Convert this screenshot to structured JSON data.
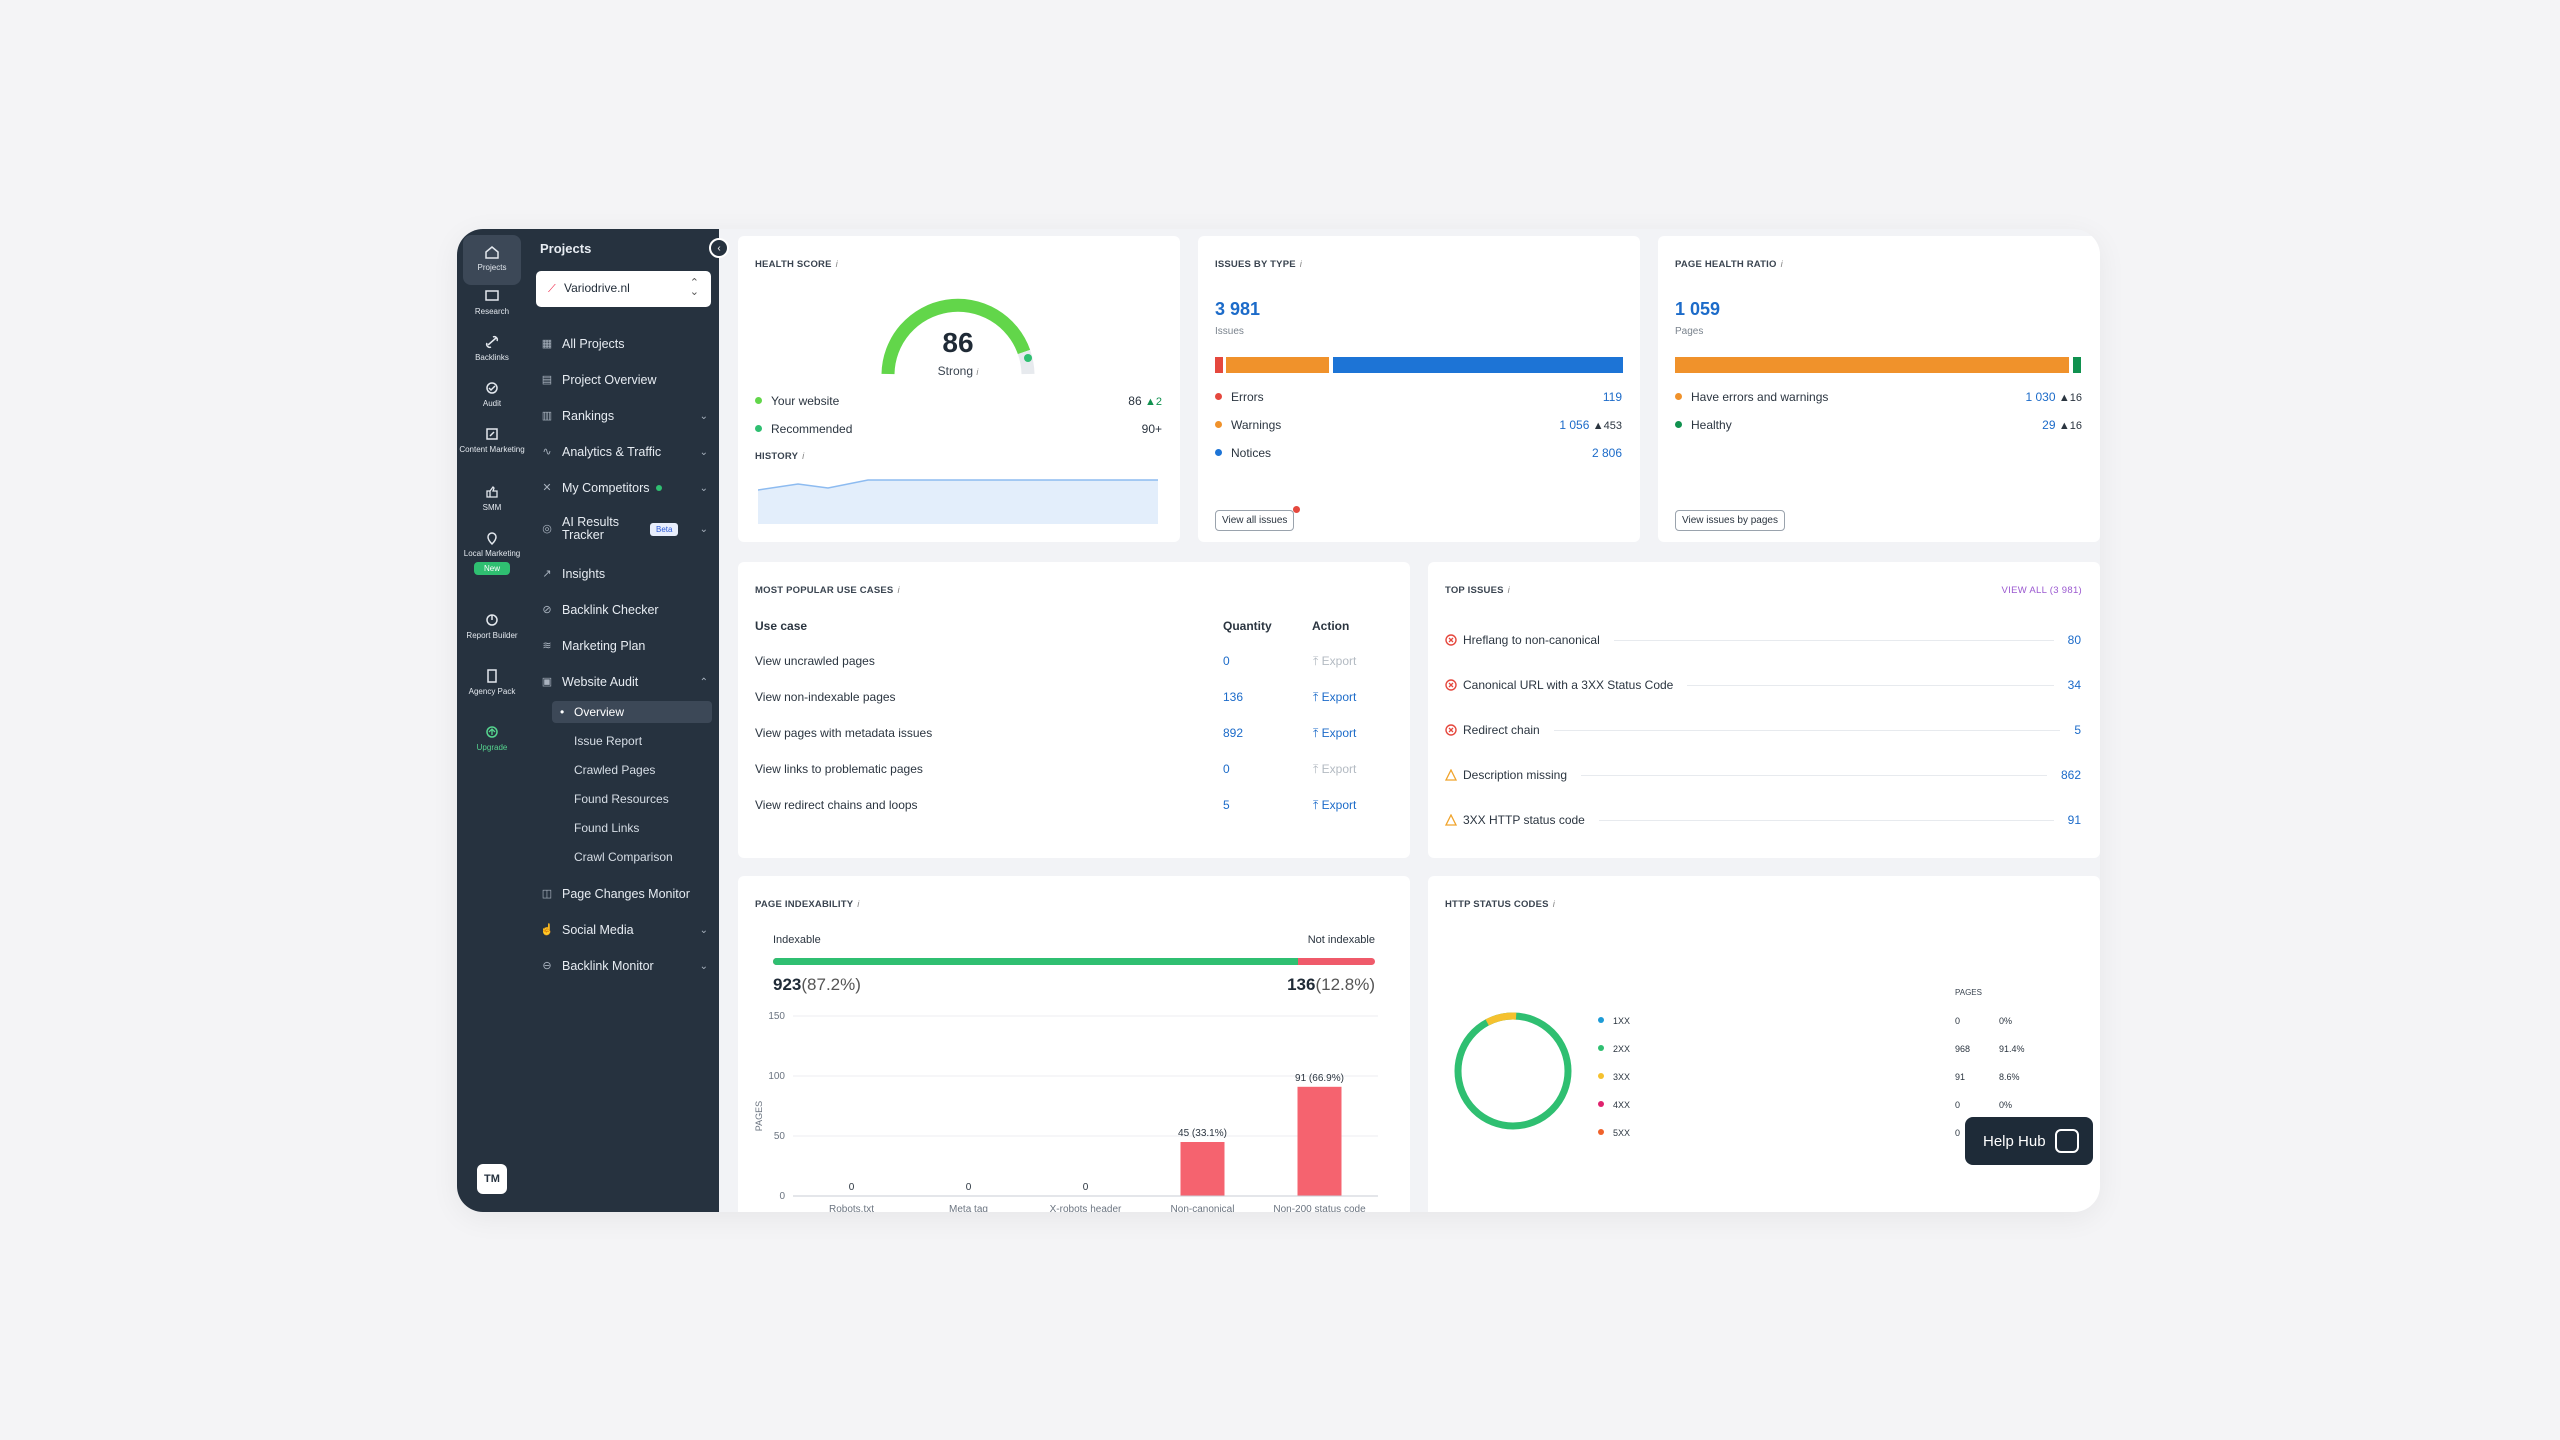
{
  "rail": [
    {
      "label": "Projects",
      "icon": "home-icon"
    },
    {
      "label": "Research",
      "icon": "research-icon"
    },
    {
      "label": "Backlinks",
      "icon": "link-icon"
    },
    {
      "label": "Audit",
      "icon": "audit-icon"
    },
    {
      "label": "Content Marketing",
      "icon": "content-icon"
    },
    {
      "label": "SMM",
      "icon": "like-icon"
    },
    {
      "label": "Local Marketing",
      "icon": "pin-icon",
      "badge": "New"
    },
    {
      "label": "Report Builder",
      "icon": "report-icon"
    },
    {
      "label": "Agency Pack",
      "icon": "agency-icon"
    },
    {
      "label": "Upgrade",
      "icon": "upgrade-icon"
    }
  ],
  "avatar": "TM",
  "nav": {
    "title": "Projects",
    "project": "Variodrive.nl",
    "items": [
      {
        "label": "All Projects"
      },
      {
        "label": "Project Overview"
      },
      {
        "label": "Rankings"
      },
      {
        "label": "Analytics & Traffic"
      },
      {
        "label": "My Competitors"
      },
      {
        "label": "AI Results Tracker",
        "badge": "Beta"
      },
      {
        "label": "Insights"
      },
      {
        "label": "Backlink Checker"
      },
      {
        "label": "Marketing Plan"
      },
      {
        "label": "Website Audit"
      }
    ],
    "sub": [
      "Overview",
      "Issue Report",
      "Crawled Pages",
      "Found Resources",
      "Found Links",
      "Crawl Comparison"
    ],
    "after": [
      "Page Changes Monitor",
      "Social Media",
      "Backlink Monitor"
    ]
  },
  "health": {
    "title": "HEALTH SCORE",
    "score": "86",
    "label": "Strong",
    "your": "Your website",
    "your_val": "86",
    "your_delta": "▲2",
    "rec": "Recommended",
    "rec_val": "90+",
    "history": "HISTORY"
  },
  "issues": {
    "title": "ISSUES BY TYPE",
    "total": "3 981",
    "total_label": "Issues",
    "rows": [
      {
        "label": "Errors",
        "val": "119",
        "delta": "",
        "color": "#e5483e"
      },
      {
        "label": "Warnings",
        "val": "1 056",
        "delta": "▲453",
        "color": "#f0922b"
      },
      {
        "label": "Notices",
        "val": "2 806",
        "delta": "",
        "color": "#1d74d6"
      }
    ],
    "button": "View all issues"
  },
  "ratio": {
    "title": "PAGE HEALTH RATIO",
    "total": "1 059",
    "total_label": "Pages",
    "rows": [
      {
        "label": "Have errors and warnings",
        "val": "1 030",
        "delta": "▲16",
        "color": "#f0922b"
      },
      {
        "label": "Healthy",
        "val": "29",
        "delta": "▲16",
        "color": "#10914f"
      }
    ],
    "button": "View issues by pages"
  },
  "usecases": {
    "title": "MOST POPULAR USE CASES",
    "h_use": "Use case",
    "h_qty": "Quantity",
    "h_act": "Action",
    "rows": [
      {
        "label": "View uncrawled pages",
        "qty": "0",
        "action": "Export",
        "enabled": false
      },
      {
        "label": "View non-indexable pages",
        "qty": "136",
        "action": "Export",
        "enabled": true
      },
      {
        "label": "View pages with metadata issues",
        "qty": "892",
        "action": "Export",
        "enabled": true
      },
      {
        "label": "View links to problematic pages",
        "qty": "0",
        "action": "Export",
        "enabled": false
      },
      {
        "label": "View redirect chains and loops",
        "qty": "5",
        "action": "Export",
        "enabled": true
      }
    ]
  },
  "topissues": {
    "title": "TOP ISSUES",
    "view_all": "VIEW ALL (3 981)",
    "rows": [
      {
        "label": "Hreflang to non-canonical",
        "num": "80",
        "type": "error"
      },
      {
        "label": "Canonical URL with a 3XX Status Code",
        "num": "34",
        "type": "error"
      },
      {
        "label": "Redirect chain",
        "num": "5",
        "type": "error"
      },
      {
        "label": "Description missing",
        "num": "862",
        "type": "warning"
      },
      {
        "label": "3XX HTTP status code",
        "num": "91",
        "type": "warning"
      }
    ]
  },
  "index": {
    "title": "PAGE INDEXABILITY",
    "indexable": "Indexable",
    "not_indexable": "Not indexable",
    "ind_val": "923",
    "ind_pct": "(87.2%)",
    "non_val": "136",
    "non_pct": "(12.8%)",
    "ind_fraction": 0.872,
    "ylabel": "PAGES"
  },
  "chart_data": {
    "type": "bar",
    "categories": [
      "Robots.txt",
      "Meta tag",
      "X-robots header",
      "Non-canonical",
      "Non-200 status code"
    ],
    "values": [
      0,
      0,
      0,
      45,
      91
    ],
    "labels": [
      "0",
      "0",
      "0",
      "45",
      "91"
    ],
    "pct_labels": [
      "",
      "",
      "",
      "(33.1%)",
      "(66.9%)"
    ],
    "ylim": [
      0,
      150
    ],
    "yticks": [
      "0",
      "50",
      "100",
      "150"
    ],
    "ylabel": "PAGES"
  },
  "http": {
    "title": "HTTP STATUS CODES",
    "col": "PAGES",
    "rows": [
      {
        "code": "1XX",
        "pages": "0",
        "pct": "0%",
        "color": "#1d9bd6"
      },
      {
        "code": "2XX",
        "pages": "968",
        "pct": "91.4%",
        "color": "#2fbf71"
      },
      {
        "code": "3XX",
        "pages": "91",
        "pct": "8.6%",
        "color": "#f5c12e"
      },
      {
        "code": "4XX",
        "pages": "0",
        "pct": "0%",
        "color": "#e0226e"
      },
      {
        "code": "5XX",
        "pages": "0",
        "pct": "",
        "color": "#f0622b"
      }
    ]
  },
  "helphub": "Help Hub",
  "colors": {
    "accent": "#1c6bc9",
    "dark": "#26323f",
    "green": "#2fbf71",
    "red": "#ef5a6a"
  }
}
